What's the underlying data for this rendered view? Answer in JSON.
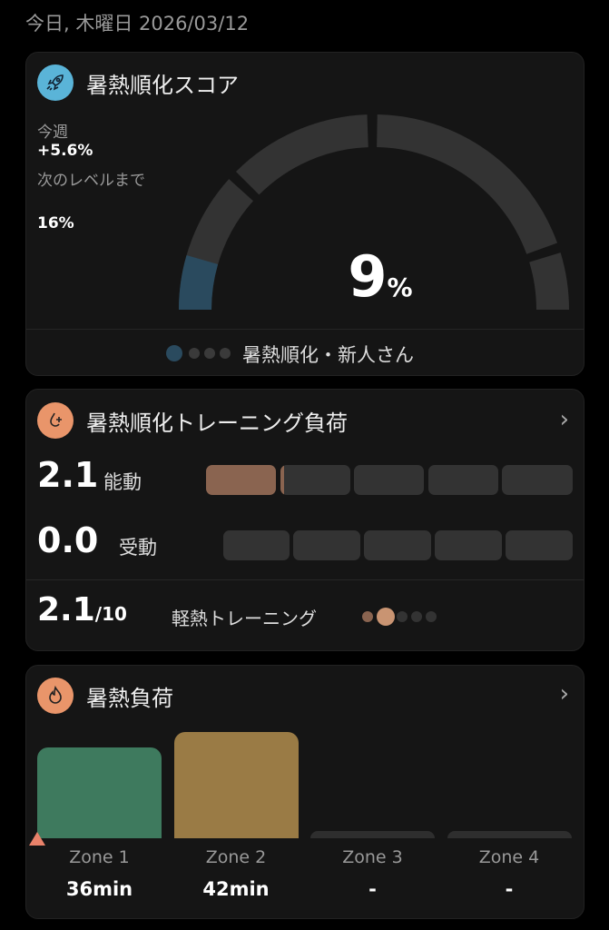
{
  "date": "今日, 木曜日 2026/03/12",
  "score_card": {
    "title": "暑熱順化スコア",
    "icon": "rocket-icon",
    "this_week_label": "今週",
    "this_week_value": "+5.6%",
    "next_level_label": "次のレベルまで",
    "next_level_value": "16%",
    "score_value": "9",
    "score_unit": "%",
    "score_percent": 9,
    "level_label": "暑熱順化・新人さん",
    "level_index": 1,
    "level_count": 4,
    "accent": "#2a4a5e"
  },
  "training_card": {
    "title": "暑熱順化トレーニング負荷",
    "icon": "heat-training-icon",
    "active_value": "2.1",
    "active_label": "能動",
    "passive_value": "0.0",
    "passive_label": "受動",
    "total_value": "2.1",
    "total_max": "/10",
    "level_label": "軽熱トレーニング",
    "level_index": 2,
    "level_count": 5,
    "accent": "#8a6450"
  },
  "heat_card": {
    "title": "暑熱負荷",
    "icon": "flame-icon",
    "zones": [
      {
        "label": "Zone 1",
        "value": "36min",
        "minutes": 36,
        "color": "#3e7a5e"
      },
      {
        "label": "Zone 2",
        "value": "42min",
        "minutes": 42,
        "color": "#9a7b45"
      },
      {
        "label": "Zone 3",
        "value": "-",
        "minutes": 0,
        "color": "#2e2e2e"
      },
      {
        "label": "Zone 4",
        "value": "-",
        "minutes": 0,
        "color": "#2e2e2e"
      }
    ]
  }
}
